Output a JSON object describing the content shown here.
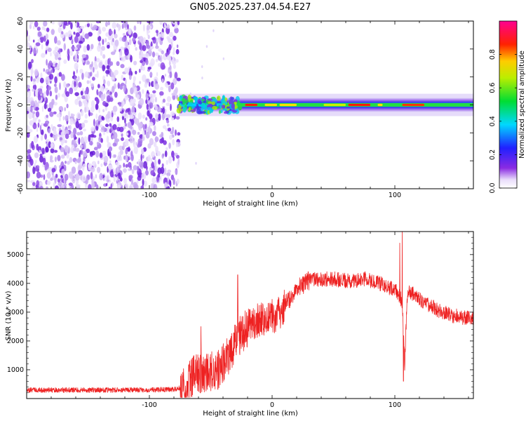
{
  "title": "GN05.2025.237.04.54.E27",
  "colors": {
    "snr_line": "#ee2222",
    "axes": "#000000",
    "background": "#ffffff"
  },
  "chart_data": [
    {
      "type": "heatmap",
      "name": "spectrogram",
      "xlabel": "Height of straight line (km)",
      "ylabel": "Frequency (Hz)",
      "xlim": [
        -200,
        164
      ],
      "ylim": [
        -60,
        60
      ],
      "x_ticks": [
        -100,
        0,
        100
      ],
      "y_ticks": [
        -60,
        -40,
        -20,
        0,
        20,
        40,
        60
      ],
      "colorbar": {
        "label": "Normalized spectral amplitude",
        "range": [
          0,
          1
        ],
        "ticks": [
          0.0,
          0.2,
          0.4,
          0.6,
          0.8
        ],
        "colormap": "rainbow (violet → blue → cyan → green → yellow → red → magenta)"
      },
      "features": [
        {
          "description": "broadband noise",
          "x_range": [
            -200,
            -76
          ],
          "freq_range": [
            -60,
            60
          ],
          "amplitude_range": [
            0.0,
            0.1
          ]
        },
        {
          "description": "signal band centred near 0 Hz",
          "x_range": [
            -76,
            164
          ],
          "freq_range": [
            -5,
            5
          ],
          "peak_amplitude": 1.0
        }
      ]
    },
    {
      "type": "line",
      "name": "snr",
      "xlabel": "Height of straight line (km)",
      "ylabel": "SNR (10 * v/v)",
      "xlim": [
        -200,
        164
      ],
      "ylim": [
        0,
        5800
      ],
      "x_ticks": [
        -100,
        0,
        100
      ],
      "y_ticks": [
        1000,
        2000,
        3000,
        4000,
        5000
      ],
      "series": [
        {
          "name": "SNR",
          "x": [
            -200,
            -180,
            -160,
            -140,
            -120,
            -100,
            -90,
            -80,
            -72,
            -68,
            -64,
            -60,
            -56,
            -52,
            -48,
            -44,
            -40,
            -36,
            -32,
            -28,
            -24,
            -20,
            -16,
            -12,
            -8,
            -4,
            0,
            4,
            8,
            12,
            16,
            20,
            24,
            28,
            32,
            36,
            40,
            44,
            48,
            52,
            56,
            60,
            64,
            68,
            72,
            76,
            80,
            84,
            88,
            92,
            96,
            100,
            102,
            104,
            106,
            108,
            110,
            112,
            116,
            120,
            124,
            128,
            132,
            136,
            140,
            144,
            148,
            152,
            156,
            160,
            164
          ],
          "values": [
            300,
            290,
            300,
            290,
            300,
            300,
            310,
            320,
            400,
            650,
            800,
            850,
            800,
            900,
            950,
            1000,
            1200,
            1500,
            1800,
            2100,
            2300,
            2500,
            2600,
            2700,
            2750,
            2800,
            2850,
            2900,
            3100,
            3350,
            3600,
            3800,
            3950,
            4050,
            4100,
            4150,
            4150,
            4150,
            4150,
            4150,
            4100,
            4100,
            4050,
            4100,
            4100,
            4150,
            4100,
            4050,
            4000,
            3900,
            3850,
            3800,
            3700,
            3550,
            3300,
            1200,
            3500,
            3700,
            3600,
            3450,
            3350,
            3250,
            3150,
            3050,
            2980,
            2920,
            2880,
            2850,
            2820,
            2800,
            2800
          ],
          "notable_spikes": [
            {
              "x": -58,
              "y": 2500
            },
            {
              "x": -28,
              "y": 4300
            },
            {
              "x": 104,
              "y": 5400
            },
            {
              "x": 106,
              "y": 5800
            },
            {
              "x": 107,
              "y": 600
            }
          ]
        }
      ]
    }
  ]
}
